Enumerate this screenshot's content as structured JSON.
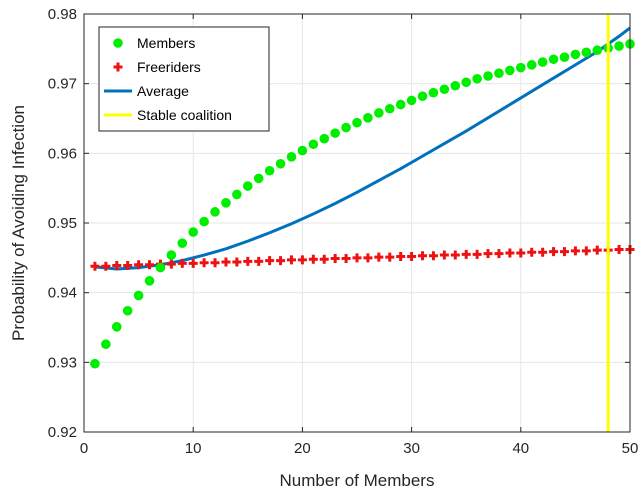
{
  "chart_data": {
    "type": "line",
    "title": "",
    "xlabel": "Number of Members",
    "ylabel": "Probability of Avoiding Infection",
    "xlim": [
      0,
      50
    ],
    "ylim": [
      0.92,
      0.98
    ],
    "xticks": [
      0,
      10,
      20,
      30,
      40,
      50
    ],
    "yticks": [
      0.92,
      0.93,
      0.94,
      0.95,
      0.96,
      0.97,
      0.98
    ],
    "xtick_labels": [
      "0",
      "10",
      "20",
      "30",
      "40",
      "50"
    ],
    "ytick_labels": [
      "0.92",
      "0.93",
      "0.94",
      "0.95",
      "0.96",
      "0.97",
      "0.98"
    ],
    "grid": true,
    "legend_position": "top-left",
    "series": [
      {
        "name": "Members",
        "style": "markers-circle",
        "color": "#00ee00",
        "x": [
          1,
          2,
          3,
          4,
          5,
          6,
          7,
          8,
          9,
          10,
          11,
          12,
          13,
          14,
          15,
          16,
          17,
          18,
          19,
          20,
          21,
          22,
          23,
          24,
          25,
          26,
          27,
          28,
          29,
          30,
          31,
          32,
          33,
          34,
          35,
          36,
          37,
          38,
          39,
          40,
          41,
          42,
          43,
          44,
          45,
          46,
          47,
          48,
          49,
          50
        ],
        "y": [
          0.9298,
          0.9326,
          0.9351,
          0.9374,
          0.9396,
          0.9417,
          0.9436,
          0.9454,
          0.9471,
          0.9487,
          0.9502,
          0.9516,
          0.9529,
          0.9541,
          0.9553,
          0.9564,
          0.9575,
          0.9585,
          0.9595,
          0.9604,
          0.9613,
          0.9621,
          0.9629,
          0.9637,
          0.9644,
          0.9651,
          0.9658,
          0.9664,
          0.967,
          0.9676,
          0.9682,
          0.9687,
          0.9692,
          0.9697,
          0.9702,
          0.9707,
          0.9711,
          0.9715,
          0.9719,
          0.9723,
          0.9727,
          0.9731,
          0.9735,
          0.9738,
          0.9742,
          0.9745,
          0.9748,
          0.9751,
          0.9754,
          0.9757
        ]
      },
      {
        "name": "Freeriders",
        "style": "markers-plus",
        "color": "#ee1111",
        "x": [
          1,
          2,
          3,
          4,
          5,
          6,
          7,
          8,
          9,
          10,
          11,
          12,
          13,
          14,
          15,
          16,
          17,
          18,
          19,
          20,
          21,
          22,
          23,
          24,
          25,
          26,
          27,
          28,
          29,
          30,
          31,
          32,
          33,
          34,
          35,
          36,
          37,
          38,
          39,
          40,
          41,
          42,
          43,
          44,
          45,
          46,
          47,
          48,
          49,
          50
        ],
        "y": [
          0.9438,
          0.9438,
          0.9439,
          0.9439,
          0.944,
          0.944,
          0.9441,
          0.9441,
          0.9442,
          0.9442,
          0.9443,
          0.9443,
          0.9444,
          0.9444,
          0.9445,
          0.9445,
          0.9446,
          0.9446,
          0.9447,
          0.9447,
          0.9448,
          0.9448,
          0.9449,
          0.9449,
          0.945,
          0.945,
          0.9451,
          0.9451,
          0.9452,
          0.9452,
          0.9453,
          0.9453,
          0.9454,
          0.9454,
          0.9455,
          0.9455,
          0.9456,
          0.9456,
          0.9457,
          0.9457,
          0.9458,
          0.9458,
          0.9459,
          0.9459,
          0.946,
          0.946,
          0.9461,
          0.9461,
          0.9462,
          0.9462
        ]
      },
      {
        "name": "Average",
        "style": "line",
        "color": "#0072bd",
        "x": [
          1,
          3,
          5,
          7,
          9,
          11,
          13,
          15,
          17,
          19,
          21,
          23,
          25,
          27,
          29,
          31,
          33,
          35,
          37,
          39,
          41,
          43,
          45,
          47,
          49,
          50
        ],
        "y": [
          0.9437,
          0.9434,
          0.9436,
          0.944,
          0.9446,
          0.9454,
          0.9463,
          0.9474,
          0.9486,
          0.9499,
          0.9513,
          0.9528,
          0.9544,
          0.9561,
          0.9578,
          0.9596,
          0.9614,
          0.9632,
          0.9651,
          0.967,
          0.9689,
          0.9708,
          0.9727,
          0.9746,
          0.9768,
          0.978
        ]
      },
      {
        "name": "Stable coalition",
        "style": "vertical-line",
        "color": "#ffff00",
        "x": [
          48,
          48
        ],
        "y": [
          0.92,
          0.98
        ]
      }
    ]
  }
}
